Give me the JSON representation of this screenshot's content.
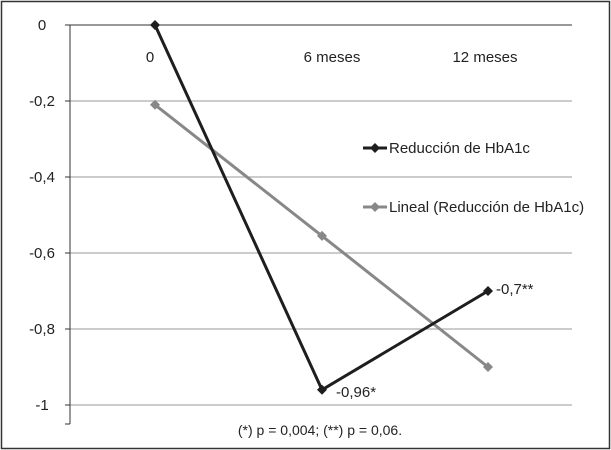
{
  "chart_data": {
    "type": "line",
    "categories": [
      "0",
      "6 meses",
      "12 meses"
    ],
    "series": [
      {
        "name": "Reducción de HbA1c",
        "values": [
          0,
          -0.96,
          -0.7
        ],
        "color": "#1e1e1e",
        "marker": "diamond",
        "data_labels": [
          "",
          "-0,96*",
          "-0,7**"
        ]
      },
      {
        "name": "Lineal (Reducción de HbA1c)",
        "values": [
          -0.21,
          -0.555,
          -0.9
        ],
        "color": "#888888",
        "marker": "diamond",
        "data_labels": [
          "",
          "",
          ""
        ]
      }
    ],
    "y_ticks": [
      0,
      -0.2,
      -0.4,
      -0.6,
      -0.8,
      -1
    ],
    "y_tick_labels": [
      "0",
      "-0,2",
      "-0,4",
      "-0,6",
      "-0,8",
      "-1"
    ],
    "ylim": [
      -1.05,
      0
    ],
    "x_axis_position": "top",
    "grid": "horizontal",
    "legend_position": "right",
    "footnote": "(*) p = 0,004; (**) p = 0,06."
  }
}
